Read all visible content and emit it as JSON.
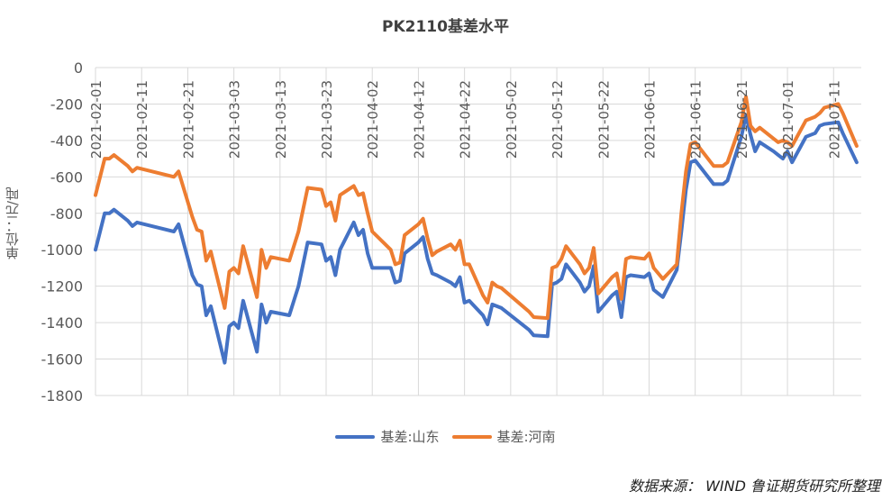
{
  "colors": {
    "series1": "#4472C4",
    "series2": "#ED7D31",
    "grid": "#D9D9D9",
    "axis_text": "#595959"
  },
  "source_text": "数据来源： WIND 鲁证期货研究所整理",
  "chart_data": {
    "type": "line",
    "title": "PK2110基差水平",
    "ylabel": "单位：元/吨",
    "xlabel": "",
    "ylim": [
      -1800,
      0
    ],
    "yticks": [
      0,
      -200,
      -400,
      -600,
      -800,
      -1000,
      -1200,
      -1400,
      -1600,
      -1800
    ],
    "xlim": [
      "2021-02-01",
      "2021-07-17"
    ],
    "xticks": [
      "2021-02-01",
      "2021-02-11",
      "2021-02-21",
      "2021-03-03",
      "2021-03-13",
      "2021-03-23",
      "2021-04-02",
      "2021-04-12",
      "2021-04-22",
      "2021-05-02",
      "2021-05-12",
      "2021-05-22",
      "2021-06-01",
      "2021-06-11",
      "2021-06-21",
      "2021-07-01",
      "2021-07-11"
    ],
    "grid": true,
    "legend": "bottom",
    "series": [
      {
        "name": "基差:山东",
        "color": "#4472C4",
        "points": [
          [
            "2021-02-01",
            -1000
          ],
          [
            "2021-02-03",
            -800
          ],
          [
            "2021-02-04",
            -800
          ],
          [
            "2021-02-05",
            -780
          ],
          [
            "2021-02-08",
            -840
          ],
          [
            "2021-02-09",
            -870
          ],
          [
            "2021-02-10",
            -850
          ],
          [
            "2021-02-18",
            -900
          ],
          [
            "2021-02-19",
            -860
          ],
          [
            "2021-02-22",
            -1140
          ],
          [
            "2021-02-23",
            -1190
          ],
          [
            "2021-02-24",
            -1200
          ],
          [
            "2021-02-25",
            -1360
          ],
          [
            "2021-02-26",
            -1310
          ],
          [
            "2021-03-01",
            -1620
          ],
          [
            "2021-03-02",
            -1420
          ],
          [
            "2021-03-03",
            -1400
          ],
          [
            "2021-03-04",
            -1430
          ],
          [
            "2021-03-05",
            -1280
          ],
          [
            "2021-03-08",
            -1560
          ],
          [
            "2021-03-09",
            -1300
          ],
          [
            "2021-03-10",
            -1400
          ],
          [
            "2021-03-11",
            -1340
          ],
          [
            "2021-03-15",
            -1360
          ],
          [
            "2021-03-16",
            -1280
          ],
          [
            "2021-03-17",
            -1200
          ],
          [
            "2021-03-18",
            -1080
          ],
          [
            "2021-03-19",
            -960
          ],
          [
            "2021-03-22",
            -970
          ],
          [
            "2021-03-23",
            -1060
          ],
          [
            "2021-03-24",
            -1040
          ],
          [
            "2021-03-25",
            -1140
          ],
          [
            "2021-03-26",
            -1000
          ],
          [
            "2021-03-29",
            -850
          ],
          [
            "2021-03-30",
            -920
          ],
          [
            "2021-03-31",
            -890
          ],
          [
            "2021-04-01",
            -1020
          ],
          [
            "2021-04-02",
            -1100
          ],
          [
            "2021-04-06",
            -1100
          ],
          [
            "2021-04-07",
            -1180
          ],
          [
            "2021-04-08",
            -1170
          ],
          [
            "2021-04-09",
            -1020
          ],
          [
            "2021-04-12",
            -960
          ],
          [
            "2021-04-13",
            -930
          ],
          [
            "2021-04-14",
            -1050
          ],
          [
            "2021-04-15",
            -1130
          ],
          [
            "2021-04-16",
            -1140
          ],
          [
            "2021-04-19",
            -1180
          ],
          [
            "2021-04-20",
            -1200
          ],
          [
            "2021-04-21",
            -1150
          ],
          [
            "2021-04-22",
            -1290
          ],
          [
            "2021-04-23",
            -1280
          ],
          [
            "2021-04-26",
            -1360
          ],
          [
            "2021-04-27",
            -1410
          ],
          [
            "2021-04-28",
            -1300
          ],
          [
            "2021-04-29",
            -1310
          ],
          [
            "2021-04-30",
            -1320
          ],
          [
            "2021-05-06",
            -1440
          ],
          [
            "2021-05-07",
            -1470
          ],
          [
            "2021-05-10",
            -1475
          ],
          [
            "2021-05-11",
            -1190
          ],
          [
            "2021-05-12",
            -1180
          ],
          [
            "2021-05-13",
            -1160
          ],
          [
            "2021-05-14",
            -1080
          ],
          [
            "2021-05-17",
            -1180
          ],
          [
            "2021-05-18",
            -1230
          ],
          [
            "2021-05-19",
            -1200
          ],
          [
            "2021-05-20",
            -1090
          ],
          [
            "2021-05-21",
            -1340
          ],
          [
            "2021-05-24",
            -1250
          ],
          [
            "2021-05-25",
            -1230
          ],
          [
            "2021-05-26",
            -1370
          ],
          [
            "2021-05-27",
            -1150
          ],
          [
            "2021-05-28",
            -1140
          ],
          [
            "2021-05-31",
            -1150
          ],
          [
            "2021-06-01",
            -1130
          ],
          [
            "2021-06-02",
            -1220
          ],
          [
            "2021-06-03",
            -1240
          ],
          [
            "2021-06-04",
            -1260
          ],
          [
            "2021-06-07",
            -1110
          ],
          [
            "2021-06-08",
            -900
          ],
          [
            "2021-06-09",
            -670
          ],
          [
            "2021-06-10",
            -520
          ],
          [
            "2021-06-11",
            -510
          ],
          [
            "2021-06-15",
            -640
          ],
          [
            "2021-06-16",
            -640
          ],
          [
            "2021-06-17",
            -640
          ],
          [
            "2021-06-18",
            -620
          ],
          [
            "2021-06-21",
            -380
          ],
          [
            "2021-06-22",
            -260
          ],
          [
            "2021-06-23",
            -370
          ],
          [
            "2021-06-24",
            -460
          ],
          [
            "2021-06-25",
            -410
          ],
          [
            "2021-06-28",
            -460
          ],
          [
            "2021-06-29",
            -480
          ],
          [
            "2021-06-30",
            -500
          ],
          [
            "2021-07-01",
            -460
          ],
          [
            "2021-07-02",
            -520
          ],
          [
            "2021-07-05",
            -380
          ],
          [
            "2021-07-06",
            -370
          ],
          [
            "2021-07-07",
            -360
          ],
          [
            "2021-07-08",
            -320
          ],
          [
            "2021-07-09",
            -310
          ],
          [
            "2021-07-12",
            -300
          ],
          [
            "2021-07-13",
            -360
          ],
          [
            "2021-07-16",
            -520
          ]
        ]
      },
      {
        "name": "基差:河南",
        "color": "#ED7D31",
        "points": [
          [
            "2021-02-01",
            -700
          ],
          [
            "2021-02-03",
            -500
          ],
          [
            "2021-02-04",
            -500
          ],
          [
            "2021-02-05",
            -480
          ],
          [
            "2021-02-08",
            -540
          ],
          [
            "2021-02-09",
            -570
          ],
          [
            "2021-02-10",
            -550
          ],
          [
            "2021-02-18",
            -600
          ],
          [
            "2021-02-19",
            -570
          ],
          [
            "2021-02-22",
            -820
          ],
          [
            "2021-02-23",
            -890
          ],
          [
            "2021-02-24",
            -900
          ],
          [
            "2021-02-25",
            -1060
          ],
          [
            "2021-02-26",
            -1010
          ],
          [
            "2021-03-01",
            -1320
          ],
          [
            "2021-03-02",
            -1120
          ],
          [
            "2021-03-03",
            -1100
          ],
          [
            "2021-03-04",
            -1130
          ],
          [
            "2021-03-05",
            -980
          ],
          [
            "2021-03-08",
            -1260
          ],
          [
            "2021-03-09",
            -1000
          ],
          [
            "2021-03-10",
            -1100
          ],
          [
            "2021-03-11",
            -1040
          ],
          [
            "2021-03-15",
            -1060
          ],
          [
            "2021-03-16",
            -980
          ],
          [
            "2021-03-17",
            -900
          ],
          [
            "2021-03-18",
            -780
          ],
          [
            "2021-03-19",
            -660
          ],
          [
            "2021-03-22",
            -670
          ],
          [
            "2021-03-23",
            -760
          ],
          [
            "2021-03-24",
            -740
          ],
          [
            "2021-03-25",
            -840
          ],
          [
            "2021-03-26",
            -700
          ],
          [
            "2021-03-29",
            -650
          ],
          [
            "2021-03-30",
            -700
          ],
          [
            "2021-03-31",
            -690
          ],
          [
            "2021-04-01",
            -800
          ],
          [
            "2021-04-02",
            -900
          ],
          [
            "2021-04-06",
            -1000
          ],
          [
            "2021-04-07",
            -1080
          ],
          [
            "2021-04-08",
            -1070
          ],
          [
            "2021-04-09",
            -920
          ],
          [
            "2021-04-12",
            -860
          ],
          [
            "2021-04-13",
            -830
          ],
          [
            "2021-04-14",
            -940
          ],
          [
            "2021-04-15",
            -1030
          ],
          [
            "2021-04-16",
            -1010
          ],
          [
            "2021-04-19",
            -970
          ],
          [
            "2021-04-20",
            -1000
          ],
          [
            "2021-04-21",
            -950
          ],
          [
            "2021-04-22",
            -1080
          ],
          [
            "2021-04-23",
            -1080
          ],
          [
            "2021-04-26",
            -1250
          ],
          [
            "2021-04-27",
            -1290
          ],
          [
            "2021-04-28",
            -1180
          ],
          [
            "2021-04-29",
            -1200
          ],
          [
            "2021-04-30",
            -1210
          ],
          [
            "2021-05-06",
            -1340
          ],
          [
            "2021-05-07",
            -1370
          ],
          [
            "2021-05-10",
            -1375
          ],
          [
            "2021-05-11",
            -1100
          ],
          [
            "2021-05-12",
            -1090
          ],
          [
            "2021-05-13",
            -1050
          ],
          [
            "2021-05-14",
            -980
          ],
          [
            "2021-05-17",
            -1080
          ],
          [
            "2021-05-18",
            -1130
          ],
          [
            "2021-05-19",
            -1100
          ],
          [
            "2021-05-20",
            -990
          ],
          [
            "2021-05-21",
            -1240
          ],
          [
            "2021-05-24",
            -1150
          ],
          [
            "2021-05-25",
            -1130
          ],
          [
            "2021-05-26",
            -1270
          ],
          [
            "2021-05-27",
            -1050
          ],
          [
            "2021-05-28",
            -1040
          ],
          [
            "2021-05-31",
            -1050
          ],
          [
            "2021-06-01",
            -1020
          ],
          [
            "2021-06-02",
            -1100
          ],
          [
            "2021-06-03",
            -1130
          ],
          [
            "2021-06-04",
            -1160
          ],
          [
            "2021-06-07",
            -1080
          ],
          [
            "2021-06-08",
            -800
          ],
          [
            "2021-06-09",
            -570
          ],
          [
            "2021-06-10",
            -420
          ],
          [
            "2021-06-11",
            -410
          ],
          [
            "2021-06-15",
            -540
          ],
          [
            "2021-06-16",
            -540
          ],
          [
            "2021-06-17",
            -540
          ],
          [
            "2021-06-18",
            -520
          ],
          [
            "2021-06-21",
            -300
          ],
          [
            "2021-06-22",
            -160
          ],
          [
            "2021-06-23",
            -320
          ],
          [
            "2021-06-24",
            -350
          ],
          [
            "2021-06-25",
            -330
          ],
          [
            "2021-06-28",
            -390
          ],
          [
            "2021-06-29",
            -410
          ],
          [
            "2021-06-30",
            -400
          ],
          [
            "2021-07-01",
            -410
          ],
          [
            "2021-07-02",
            -430
          ],
          [
            "2021-07-05",
            -290
          ],
          [
            "2021-07-06",
            -280
          ],
          [
            "2021-07-07",
            -270
          ],
          [
            "2021-07-08",
            -250
          ],
          [
            "2021-07-09",
            -220
          ],
          [
            "2021-07-12",
            -200
          ],
          [
            "2021-07-13",
            -250
          ],
          [
            "2021-07-16",
            -430
          ]
        ]
      }
    ]
  }
}
